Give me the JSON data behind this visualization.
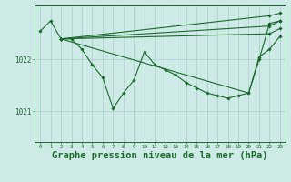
{
  "background_color": "#ceeae7",
  "grid_color": "#aacccc",
  "line_color": "#1a6b2a",
  "marker_color": "#1a6b2a",
  "xlabel": "Graphe pression niveau de la mer (hPa)",
  "xlabel_fontsize": 7.5,
  "ylabel_ticks": [
    1021,
    1022
  ],
  "xlim": [
    -0.5,
    23.5
  ],
  "ylim": [
    1020.4,
    1023.05
  ],
  "curves": [
    {
      "x": [
        0,
        1,
        2,
        3,
        4,
        5,
        6,
        7,
        8,
        9,
        10,
        11,
        12,
        13,
        14,
        15,
        16,
        17,
        18,
        19,
        20,
        21,
        22,
        23
      ],
      "y": [
        1022.55,
        1022.75,
        1022.4,
        1022.4,
        1022.2,
        1021.9,
        1021.65,
        1021.05,
        1021.35,
        1021.6,
        1022.15,
        1021.9,
        1021.8,
        1021.7,
        1021.55,
        1021.45,
        1021.35,
        1021.3,
        1021.25,
        1021.3,
        1021.35,
        1022.0,
        1022.7,
        1022.75
      ]
    },
    {
      "x": [
        2,
        22,
        23
      ],
      "y": [
        1022.4,
        1022.85,
        1022.9
      ]
    },
    {
      "x": [
        2,
        22,
        23
      ],
      "y": [
        1022.4,
        1022.65,
        1022.75
      ]
    },
    {
      "x": [
        2,
        22,
        23
      ],
      "y": [
        1022.4,
        1022.5,
        1022.6
      ]
    },
    {
      "x": [
        2,
        20,
        21,
        22,
        23
      ],
      "y": [
        1022.4,
        1021.35,
        1022.05,
        1022.2,
        1022.45
      ]
    }
  ]
}
